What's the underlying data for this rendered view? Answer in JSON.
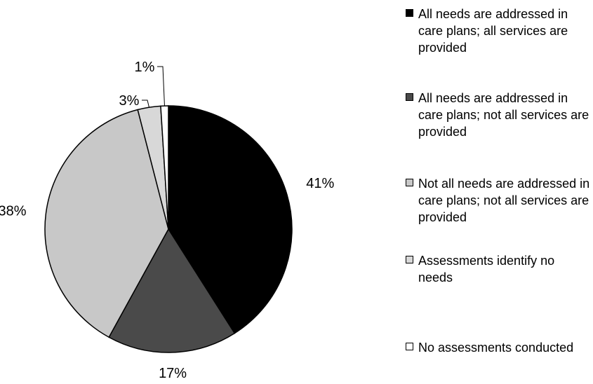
{
  "chart_data": {
    "type": "pie",
    "categories": [
      "All needs are addressed in care plans; all services are provided",
      "All needs are addressed in care plans; not all services are provided",
      "Not all needs are addressed in care plans; not all services are provided",
      "Assessments identify no needs",
      "No assessments conducted"
    ],
    "values": [
      41,
      17,
      38,
      3,
      1
    ],
    "data_labels": [
      "41%",
      "17%",
      "38%",
      "3%",
      "1%"
    ],
    "colors": [
      "#000000",
      "#4a4a4a",
      "#c8c8c8",
      "#d8d8d8",
      "#ffffff"
    ],
    "legend_position": "right",
    "start_angle_deg": 0,
    "direction": "clockwise"
  },
  "legend": {
    "items": [
      {
        "label": "All needs are addressed in care plans; all services are provided",
        "color": "#000000"
      },
      {
        "label": "All needs are addressed in care plans; not all services are provided",
        "color": "#4a4a4a"
      },
      {
        "label": "Not all needs are addressed in care plans; not all services are provided",
        "color": "#c8c8c8"
      },
      {
        "label": "Assessments identify no needs",
        "color": "#d8d8d8"
      },
      {
        "label": "No assessments conducted",
        "color": "#ffffff"
      }
    ]
  }
}
